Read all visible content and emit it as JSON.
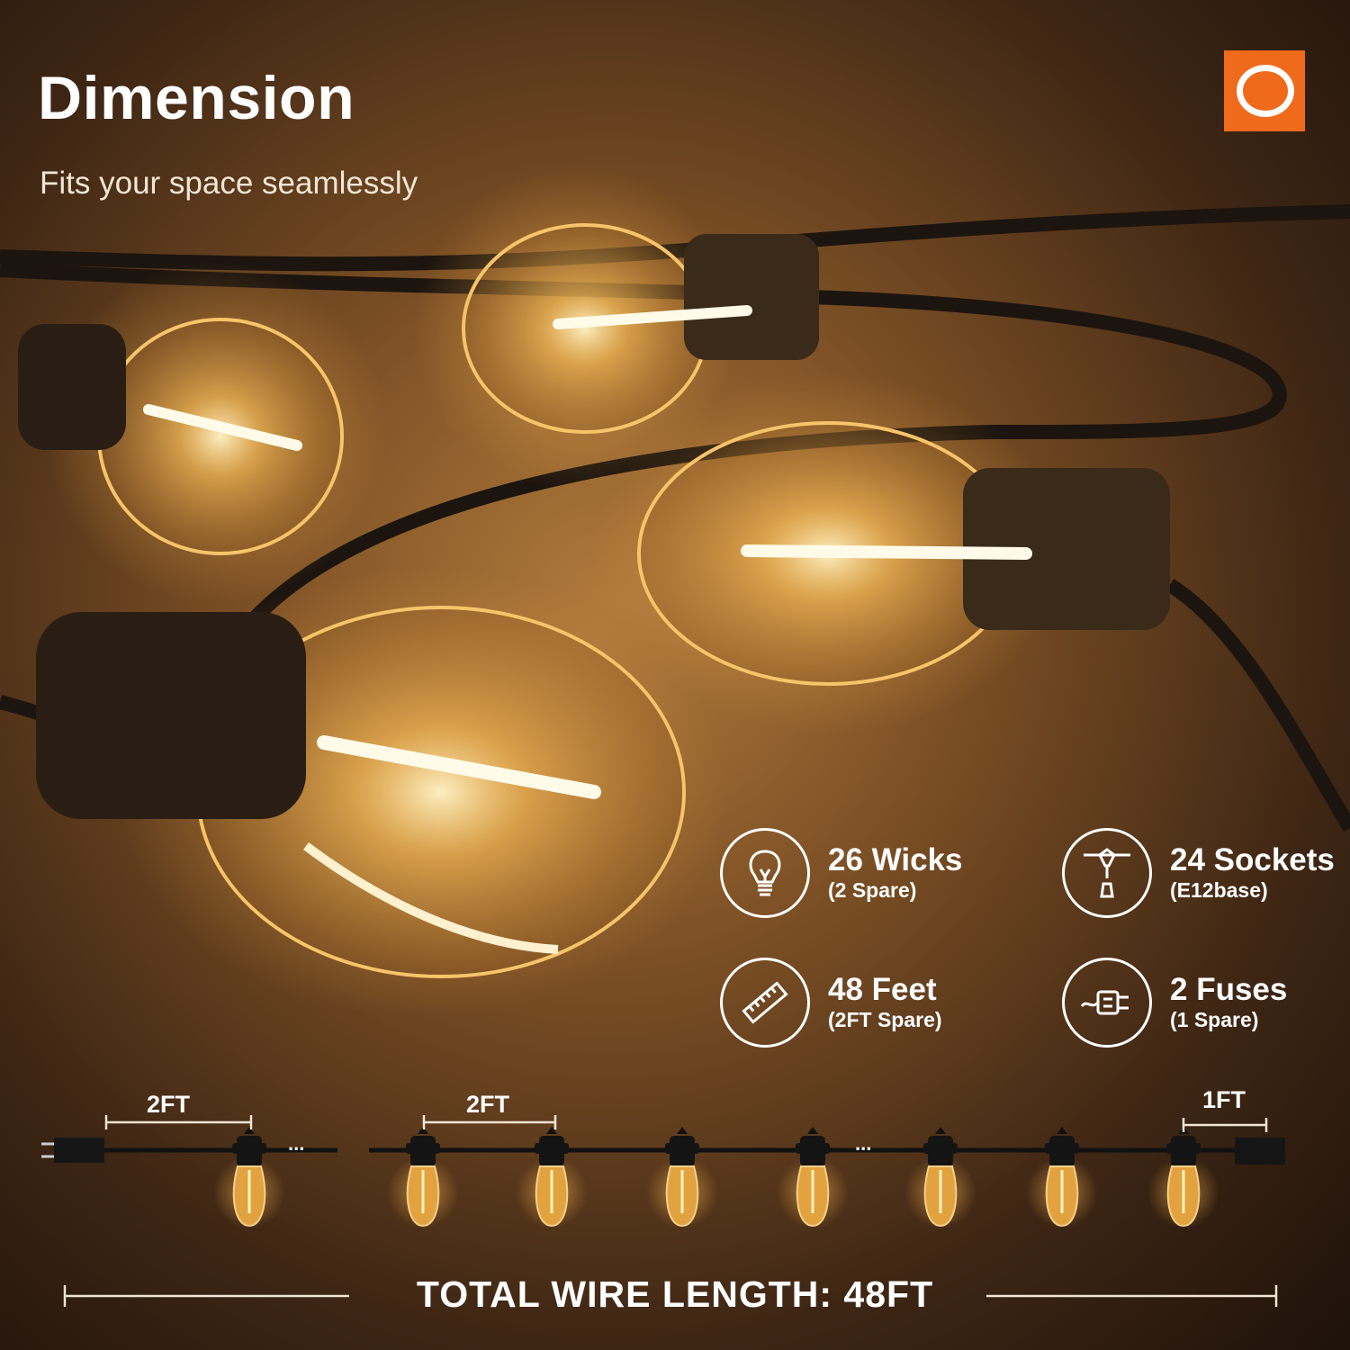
{
  "header": {
    "title": "Dimension",
    "subtitle": "Fits your space seamlessly",
    "logo_icon": "orange-square-ring-logo",
    "brand_color": "#f06a1c"
  },
  "specs": [
    {
      "icon": "light-bulb-icon",
      "main": "26 Wicks",
      "sub": "(2 Spare)"
    },
    {
      "icon": "socket-icon",
      "main": "24 Sockets",
      "sub": "(E12base)"
    },
    {
      "icon": "ruler-icon",
      "main": "48 Feet",
      "sub": "(2FT Spare)"
    },
    {
      "icon": "plug-fuse-icon",
      "main": "2 Fuses",
      "sub": "(1 Spare)"
    }
  ],
  "diagram": {
    "plug_to_first": "2FT",
    "bulb_spacing": "2FT",
    "last_to_end": "1FT",
    "ellipsis": "...",
    "total": "TOTAL WIRE LENGTH: 48FT"
  }
}
